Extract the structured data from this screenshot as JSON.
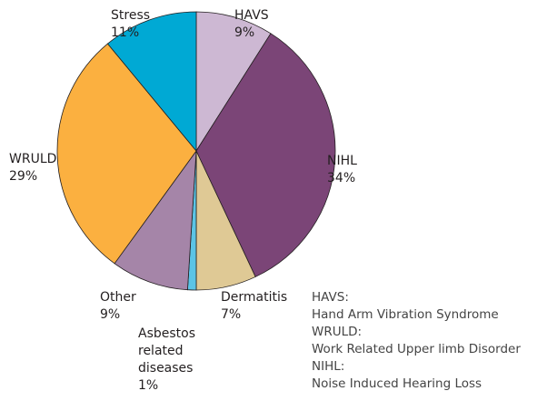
{
  "chart_data": {
    "type": "pie",
    "categories": [
      "HAVS",
      "NIHL",
      "Dermatitis",
      "Asbestos related diseases",
      "Other",
      "WRULD",
      "Stress"
    ],
    "values": [
      9,
      34,
      7,
      1,
      9,
      29,
      11
    ],
    "value_labels": [
      "9%",
      "34%",
      "7%",
      "1%",
      "9%",
      "29%",
      "11%"
    ],
    "colors": [
      "#cdb8d3",
      "#7b4577",
      "#dfc995",
      "#5bc4e6",
      "#a585a8",
      "#fbb040",
      "#00a9d4"
    ],
    "annotations": [
      "HAVS:",
      "Hand Arm Vibration Syndrome",
      "WRULD:",
      "Work Related Upper limb Disorder",
      "NIHL:",
      "Noise Induced Hearing Loss"
    ]
  }
}
